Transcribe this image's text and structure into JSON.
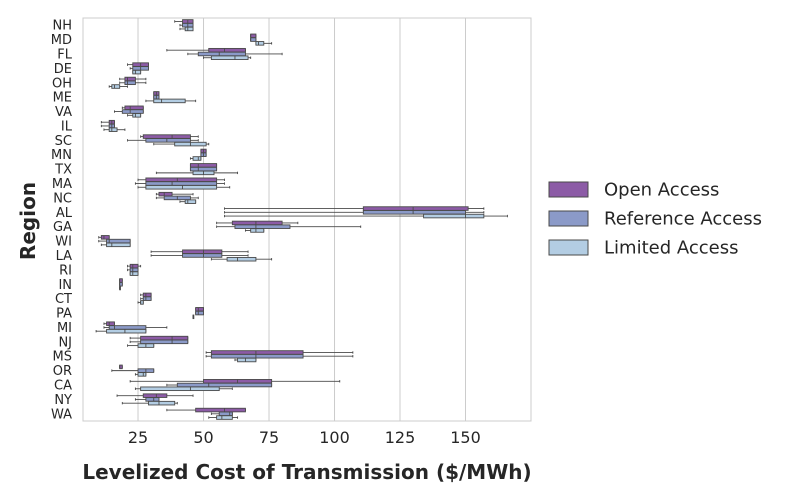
{
  "chart_data": {
    "type": "boxplot-horizontal",
    "xlabel": "Levelized Cost of Transmission ($/MWh)",
    "ylabel": "Region",
    "xlim": [
      4,
      175
    ],
    "xticks": [
      25,
      50,
      75,
      100,
      125,
      150
    ],
    "grid": "vertical",
    "legend_position": "right",
    "series": [
      {
        "name": "Open Access",
        "color": "#8c5ba6"
      },
      {
        "name": "Reference Access",
        "color": "#8b9ac8"
      },
      {
        "name": "Limited Access",
        "color": "#b3cde3"
      }
    ],
    "categories": [
      "NH",
      "MD",
      "FL",
      "DE",
      "OH",
      "ME",
      "VA",
      "IL",
      "SC",
      "MN",
      "TX",
      "MA",
      "NC",
      "AL",
      "GA",
      "WI",
      "LA",
      "RI",
      "IN",
      "CT",
      "PA",
      "MI",
      "NJ",
      "MS",
      "OR",
      "CA",
      "NY",
      "WA"
    ],
    "boxes": {
      "NH": [
        [
          39,
          42,
          44,
          46,
          46
        ],
        [
          41,
          42,
          44,
          46,
          46
        ],
        [
          41,
          43,
          44,
          46,
          46
        ]
      ],
      "MD": [
        [
          68,
          68,
          68,
          70,
          70
        ],
        [
          68,
          68,
          68,
          70,
          70
        ],
        [
          70,
          70,
          71,
          73,
          76
        ]
      ],
      "FL": [
        [
          36,
          52,
          58,
          66,
          66
        ],
        [
          44,
          48,
          56,
          66,
          80
        ],
        [
          50,
          53,
          62,
          67,
          68
        ]
      ],
      "DE": [
        [
          21,
          23,
          26,
          29,
          29
        ],
        [
          22,
          23,
          26,
          29,
          29
        ],
        [
          23,
          23,
          24,
          26,
          26
        ]
      ],
      "OH": [
        [
          18,
          20,
          21,
          24,
          28
        ],
        [
          18,
          20,
          21,
          24,
          28
        ],
        [
          14,
          15,
          16,
          18,
          21
        ]
      ],
      "ME": [
        [
          31,
          31,
          32,
          33,
          33
        ],
        [
          31,
          31,
          32,
          33,
          33
        ],
        [
          28,
          31,
          34,
          43,
          47
        ]
      ],
      "VA": [
        [
          19,
          20,
          22,
          27,
          27
        ],
        [
          16,
          19,
          22,
          27,
          27
        ],
        [
          21,
          23,
          24,
          26,
          26
        ]
      ],
      "IL": [
        [
          11,
          14,
          15,
          16,
          16
        ],
        [
          11,
          14,
          15,
          16,
          16
        ],
        [
          12,
          14,
          15,
          17,
          20
        ]
      ],
      "SC": [
        [
          26,
          27,
          38,
          45,
          48
        ],
        [
          21,
          28,
          36,
          45,
          48
        ],
        [
          31,
          39,
          45,
          51,
          52
        ]
      ],
      "MN": [
        [
          49,
          49,
          50,
          51,
          51
        ],
        [
          49,
          49,
          50,
          51,
          51
        ],
        [
          45,
          46,
          48,
          49,
          49
        ]
      ],
      "TX": [
        [
          45,
          45,
          48,
          55,
          55
        ],
        [
          45,
          45,
          48,
          55,
          55
        ],
        [
          32,
          46,
          50,
          54,
          63
        ]
      ],
      "MA": [
        [
          25,
          28,
          40,
          55,
          58
        ],
        [
          24,
          28,
          38,
          55,
          58
        ],
        [
          25,
          28,
          42,
          55,
          60
        ]
      ],
      "NC": [
        [
          32,
          33,
          35,
          38,
          46
        ],
        [
          32,
          35,
          40,
          45,
          48
        ],
        [
          41,
          43,
          44,
          47,
          47
        ]
      ],
      "AL": [
        [
          58,
          111,
          130,
          151,
          157
        ],
        [
          58,
          111,
          130,
          150,
          157
        ],
        [
          58,
          134,
          150,
          157,
          166
        ]
      ],
      "GA": [
        [
          55,
          61,
          70,
          80,
          86
        ],
        [
          55,
          62,
          70,
          83,
          110
        ],
        [
          66,
          68,
          70,
          73,
          73
        ]
      ],
      "WI": [
        [
          10,
          11,
          12,
          14,
          14
        ],
        [
          10,
          13,
          14,
          22,
          22
        ],
        [
          11,
          13,
          15,
          22,
          22
        ]
      ],
      "LA": [
        [
          30,
          42,
          50,
          57,
          67
        ],
        [
          30,
          42,
          50,
          57,
          67
        ],
        [
          53,
          59,
          63,
          70,
          76
        ]
      ],
      "RI": [
        [
          21,
          22,
          23,
          25,
          26
        ],
        [
          21,
          22,
          23,
          25,
          25
        ],
        [
          22,
          22,
          23,
          25,
          25
        ]
      ],
      "IN": [
        [
          18,
          18,
          18,
          19,
          19
        ],
        [
          18,
          18,
          18,
          19,
          19
        ],
        [
          18,
          18,
          18,
          18,
          18
        ]
      ],
      "CT": [
        [
          26,
          27,
          28,
          30,
          30
        ],
        [
          26,
          27,
          28,
          30,
          30
        ],
        [
          25,
          26,
          26,
          27,
          27
        ]
      ],
      "PA": [
        [
          47,
          47,
          48,
          50,
          50
        ],
        [
          47,
          47,
          48,
          50,
          50
        ],
        [
          46,
          46,
          46,
          46,
          46
        ]
      ],
      "MI": [
        [
          12,
          13,
          14,
          16,
          16
        ],
        [
          12,
          14,
          16,
          28,
          36
        ],
        [
          9,
          13,
          20,
          28,
          28
        ]
      ],
      "NJ": [
        [
          22,
          26,
          38,
          44,
          44
        ],
        [
          22,
          26,
          38,
          44,
          44
        ],
        [
          21,
          25,
          28,
          31,
          31
        ]
      ],
      "MS": [
        [
          51,
          53,
          70,
          88,
          107
        ],
        [
          51,
          53,
          70,
          88,
          107
        ],
        [
          62,
          63,
          66,
          70,
          70
        ]
      ],
      "OR": [
        [
          18,
          18,
          18,
          19,
          19
        ],
        [
          15,
          25,
          28,
          31,
          31
        ],
        [
          24,
          25,
          27,
          28,
          28
        ]
      ],
      "CA": [
        [
          22,
          50,
          63,
          76,
          102
        ],
        [
          36,
          40,
          52,
          76,
          76
        ],
        [
          24,
          26,
          45,
          56,
          61
        ]
      ],
      "NY": [
        [
          17,
          27,
          32,
          36,
          46
        ],
        [
          24,
          28,
          31,
          33,
          33
        ],
        [
          19,
          29,
          33,
          39,
          40
        ]
      ],
      "WA": [
        [
          36,
          47,
          58,
          66,
          66
        ],
        [
          53,
          56,
          60,
          61,
          61
        ],
        [
          52,
          55,
          57,
          61,
          63
        ]
      ]
    }
  }
}
